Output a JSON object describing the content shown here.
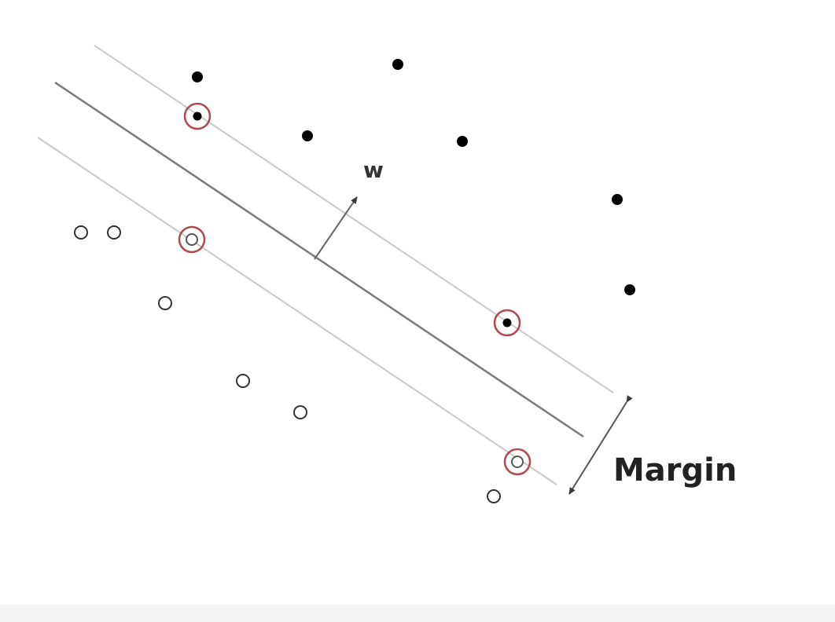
{
  "labels": {
    "w": "w",
    "margin": "Margin"
  },
  "colors": {
    "background": "#ffffff",
    "hyperplane": "#777777",
    "margin_line": "#c4c4c4",
    "arrow": "#555555",
    "positive_point": "#000000",
    "negative_point": "#333333",
    "support_ring": "#b04a52",
    "text": "#222222"
  },
  "classes": {
    "positive": "filled",
    "negative": "hollow",
    "support_vectors": "ringed"
  }
}
